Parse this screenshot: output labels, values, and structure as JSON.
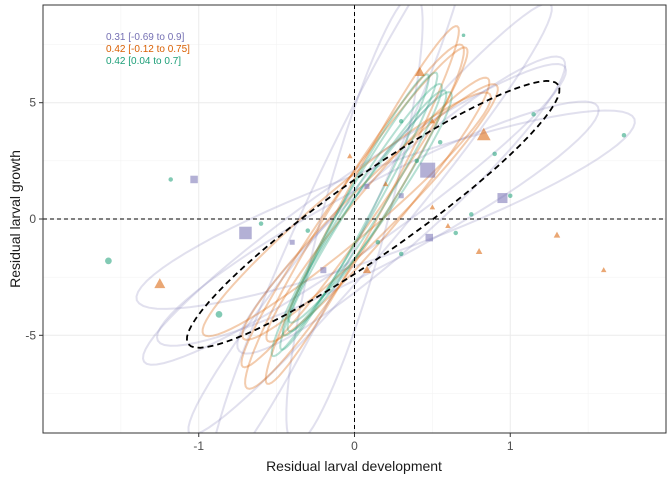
{
  "chart_data": {
    "type": "scatter",
    "title": "",
    "xlabel": "Residual larval development",
    "ylabel": "Residual larval growth",
    "xlim": [
      -2.0,
      2.0
    ],
    "ylim": [
      -9.2,
      9.2
    ],
    "x_ticks": [
      -1,
      0,
      1
    ],
    "y_ticks": [
      -5,
      0,
      5
    ],
    "x_tick_labels": [
      "-1",
      "0",
      "1"
    ],
    "y_tick_labels": [
      "-5",
      "0",
      "5"
    ],
    "grid": true,
    "reference_lines": {
      "x": 0,
      "y": 0,
      "style": "dashed"
    },
    "legend_position": "top-left",
    "colors": {
      "purple": "#7570b3",
      "orange": "#d95f02",
      "green": "#1b9e77",
      "panel_border": "#333333",
      "grid": "#ebebeb"
    },
    "series": [
      {
        "name": "0.31 [-0.69 to 0.9]",
        "color": "#7570b3",
        "marker": "square",
        "points": [
          {
            "x": 0.47,
            "y": 2.1,
            "size": 3
          },
          {
            "x": 0.95,
            "y": 0.9,
            "size": 2
          },
          {
            "x": 0.48,
            "y": -0.8,
            "size": 1.5
          },
          {
            "x": -0.7,
            "y": -0.6,
            "size": 2.5
          },
          {
            "x": -1.03,
            "y": 1.7,
            "size": 1.5
          },
          {
            "x": -0.2,
            "y": -2.2,
            "size": 1.2
          },
          {
            "x": 0.08,
            "y": 1.4,
            "size": 1
          },
          {
            "x": 0.3,
            "y": 1.0,
            "size": 1
          },
          {
            "x": -0.4,
            "y": -1.0,
            "size": 1
          }
        ]
      },
      {
        "name": "0.42 [-0.12 to 0.75]",
        "color": "#d95f02",
        "marker": "triangle",
        "points": [
          {
            "x": 0.83,
            "y": 3.6,
            "size": 2.5
          },
          {
            "x": 0.42,
            "y": 6.3,
            "size": 1.8
          },
          {
            "x": -1.25,
            "y": -2.8,
            "size": 2
          },
          {
            "x": 0.5,
            "y": 4.2,
            "size": 1
          },
          {
            "x": 1.6,
            "y": -2.2,
            "size": 1
          },
          {
            "x": 1.3,
            "y": -0.7,
            "size": 1.2
          },
          {
            "x": 0.08,
            "y": -2.2,
            "size": 1.5
          },
          {
            "x": 0.8,
            "y": -1.4,
            "size": 1.2
          },
          {
            "x": -0.03,
            "y": 2.7,
            "size": 1
          },
          {
            "x": 0.5,
            "y": 0.5,
            "size": 1
          },
          {
            "x": 0.6,
            "y": -0.3,
            "size": 1
          },
          {
            "x": 0.2,
            "y": 1.5,
            "size": 1
          }
        ]
      },
      {
        "name": "0.42 [0.04 to 0.7]",
        "color": "#1b9e77",
        "marker": "circle",
        "points": [
          {
            "x": -1.58,
            "y": -1.8,
            "size": 1.5
          },
          {
            "x": -0.87,
            "y": -4.1,
            "size": 1.5
          },
          {
            "x": 1.73,
            "y": 3.6,
            "size": 1
          },
          {
            "x": 0.7,
            "y": 7.9,
            "size": 0.8
          },
          {
            "x": -1.18,
            "y": 1.7,
            "size": 1
          },
          {
            "x": 0.55,
            "y": 3.3,
            "size": 1
          },
          {
            "x": 0.3,
            "y": 4.2,
            "size": 1
          },
          {
            "x": 0.75,
            "y": 0.2,
            "size": 1
          },
          {
            "x": -0.3,
            "y": -0.5,
            "size": 1
          },
          {
            "x": 0.15,
            "y": -1.0,
            "size": 1
          },
          {
            "x": 0.4,
            "y": 2.5,
            "size": 1
          },
          {
            "x": 0.9,
            "y": 2.8,
            "size": 1
          },
          {
            "x": 1.15,
            "y": 4.5,
            "size": 1
          },
          {
            "x": -0.6,
            "y": -0.2,
            "size": 1
          },
          {
            "x": 0.65,
            "y": -0.6,
            "size": 1
          },
          {
            "x": 0.3,
            "y": -1.5,
            "size": 1
          },
          {
            "x": 1.0,
            "y": 1.0,
            "size": 1
          }
        ]
      }
    ],
    "ellipses": [
      {
        "series": "purple",
        "cx": 0.0,
        "cy": 0.2,
        "rx": 1.65,
        "ry": 4.5,
        "angle_deg": 35
      },
      {
        "series": "purple",
        "cx": 0.1,
        "cy": 0.0,
        "rx": 1.8,
        "ry": 3.8,
        "angle_deg": 50
      },
      {
        "series": "purple",
        "cx": 0.2,
        "cy": 0.4,
        "rx": 1.7,
        "ry": 5.3,
        "angle_deg": 20
      },
      {
        "series": "purple",
        "cx": -0.1,
        "cy": 0.5,
        "rx": 1.9,
        "ry": 3.9,
        "angle_deg": 65
      },
      {
        "series": "purple",
        "cx": 0.3,
        "cy": 0.6,
        "rx": 1.4,
        "ry": 4.6,
        "angle_deg": 42
      },
      {
        "series": "purple",
        "cx": 0.0,
        "cy": 0.0,
        "rx": 1.5,
        "ry": 4.0,
        "angle_deg": 75
      },
      {
        "series": "purple",
        "cx": 0.15,
        "cy": -0.2,
        "rx": 1.6,
        "ry": 4.9,
        "angle_deg": 28
      },
      {
        "series": "orange",
        "cx": 0.0,
        "cy": 0.5,
        "rx": 1.25,
        "ry": 2.6,
        "angle_deg": 55
      },
      {
        "series": "orange",
        "cx": 0.1,
        "cy": 0.3,
        "rx": 1.15,
        "ry": 3.0,
        "angle_deg": 45
      },
      {
        "series": "orange",
        "cx": 0.05,
        "cy": 0.6,
        "rx": 1.3,
        "ry": 2.4,
        "angle_deg": 62
      },
      {
        "series": "orange",
        "cx": -0.05,
        "cy": 0.2,
        "rx": 1.2,
        "ry": 3.3,
        "angle_deg": 40
      },
      {
        "series": "orange",
        "cx": 0.15,
        "cy": 0.4,
        "rx": 1.1,
        "ry": 2.8,
        "angle_deg": 50
      },
      {
        "series": "orange",
        "cx": 0.0,
        "cy": 0.1,
        "rx": 1.3,
        "ry": 3.1,
        "angle_deg": 58
      },
      {
        "series": "green",
        "cx": 0.05,
        "cy": 0.4,
        "rx": 0.95,
        "ry": 2.0,
        "angle_deg": 58
      },
      {
        "series": "green",
        "cx": 0.0,
        "cy": 0.3,
        "rx": 1.0,
        "ry": 1.8,
        "angle_deg": 62
      },
      {
        "series": "green",
        "cx": 0.1,
        "cy": 0.5,
        "rx": 0.9,
        "ry": 2.2,
        "angle_deg": 55
      },
      {
        "series": "green",
        "cx": 0.0,
        "cy": 0.2,
        "rx": 1.05,
        "ry": 1.9,
        "angle_deg": 60
      },
      {
        "series": "green",
        "cx": 0.08,
        "cy": 0.35,
        "rx": 0.92,
        "ry": 2.1,
        "angle_deg": 57
      }
    ],
    "overall_ellipse": {
      "cx": 0.12,
      "cy": 0.2,
      "rx": 1.45,
      "ry": 4.8,
      "angle_deg": 35,
      "style": "dashed",
      "color": "#000000"
    }
  }
}
